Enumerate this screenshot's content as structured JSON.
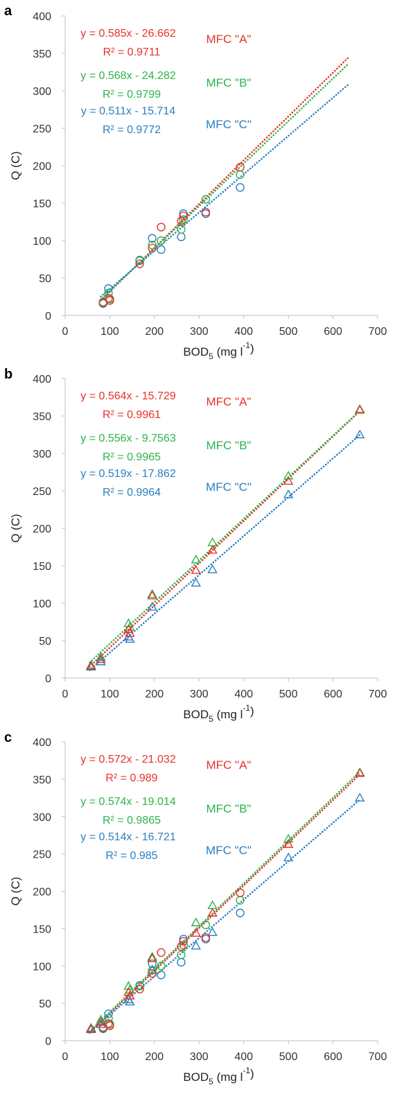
{
  "colors": {
    "A": "#e8322a",
    "B": "#2db34a",
    "C": "#2a7fc0"
  },
  "chart_data": [
    {
      "panel": "a",
      "type": "scatter",
      "marker": "circle",
      "xlabel_main": "BOD",
      "xlabel_sub": "5",
      "xlabel_tail": " (mg l",
      "xlabel_sup": "-1",
      "xlabel_close": ")",
      "ylabel": "Q (C)",
      "xlim": [
        0,
        700
      ],
      "ylim": [
        0,
        400
      ],
      "xticks": [
        0,
        100,
        200,
        300,
        400,
        500,
        600,
        700
      ],
      "yticks": [
        0,
        50,
        100,
        150,
        200,
        250,
        300,
        350,
        400
      ],
      "series": [
        {
          "key": "A",
          "name": "MFC \"A\"",
          "equation": "y = 0.585x - 26.662",
          "r2": "R² = 0.9711",
          "slope": 0.585,
          "intercept": -26.662,
          "trend_x": [
            80,
            635
          ],
          "x": [
            85,
            97,
            100,
            167,
            195,
            215,
            260,
            265,
            315,
            392
          ],
          "y": [
            17,
            23,
            20,
            69,
            90,
            118,
            126,
            133,
            138,
            198
          ]
        },
        {
          "key": "B",
          "name": "MFC \"B\"",
          "equation": "y = 0.568x - 24.282",
          "r2": "R² = 0.9799",
          "slope": 0.568,
          "intercept": -24.282,
          "trend_x": [
            80,
            635
          ],
          "x": [
            85,
            97,
            100,
            167,
            195,
            215,
            260,
            265,
            315,
            392
          ],
          "y": [
            18,
            30,
            22,
            73,
            94,
            100,
            115,
            128,
            155,
            188
          ]
        },
        {
          "key": "C",
          "name": "MFC \"C\"",
          "equation": "y = 0.511x - 15.714",
          "r2": "R² = 0.9772",
          "slope": 0.511,
          "intercept": -15.714,
          "trend_x": [
            80,
            635
          ],
          "x": [
            85,
            97,
            100,
            167,
            195,
            215,
            260,
            265,
            315,
            392
          ],
          "y": [
            16,
            36,
            22,
            74,
            103,
            88,
            105,
            136,
            136,
            171
          ]
        }
      ]
    },
    {
      "panel": "b",
      "type": "scatter",
      "marker": "triangle",
      "xlabel_main": "BOD",
      "xlabel_sub": "5",
      "xlabel_tail": " (mg l",
      "xlabel_sup": "-1",
      "xlabel_close": ")",
      "ylabel": "Q (C)",
      "xlim": [
        0,
        700
      ],
      "ylim": [
        0,
        400
      ],
      "xticks": [
        0,
        100,
        200,
        300,
        400,
        500,
        600,
        700
      ],
      "yticks": [
        0,
        50,
        100,
        150,
        200,
        250,
        300,
        350,
        400
      ],
      "series": [
        {
          "key": "A",
          "name": "MFC \"A\"",
          "equation": "y = 0.564x - 15.729",
          "r2": "R² = 0.9961",
          "slope": 0.564,
          "intercept": -15.729,
          "trend_x": [
            55,
            660
          ],
          "x": [
            58,
            80,
            142,
            145,
            195,
            293,
            330,
            500,
            660
          ],
          "y": [
            16,
            25,
            65,
            60,
            110,
            144,
            171,
            263,
            358
          ]
        },
        {
          "key": "B",
          "name": "MFC \"B\"",
          "equation": "y = 0.556x - 9.7563",
          "r2": "R² = 0.9965",
          "slope": 0.556,
          "intercept": -9.7563,
          "trend_x": [
            55,
            660
          ],
          "x": [
            58,
            80,
            142,
            145,
            195,
            293,
            330,
            500,
            660
          ],
          "y": [
            17,
            28,
            73,
            68,
            112,
            158,
            181,
            270,
            359
          ]
        },
        {
          "key": "C",
          "name": "MFC \"C\"",
          "equation": "y = 0.519x - 17.862",
          "r2": "R² = 0.9964",
          "slope": 0.519,
          "intercept": -17.862,
          "trend_x": [
            55,
            660
          ],
          "x": [
            58,
            80,
            142,
            145,
            195,
            293,
            330,
            500,
            660
          ],
          "y": [
            15,
            22,
            55,
            52,
            95,
            127,
            145,
            245,
            325
          ]
        }
      ]
    },
    {
      "panel": "c",
      "type": "scatter",
      "marker": "mixed",
      "xlabel_main": "BOD",
      "xlabel_sub": "5",
      "xlabel_tail": " (mg l",
      "xlabel_sup": "-1",
      "xlabel_close": ")",
      "ylabel": "Q (C)",
      "xlim": [
        0,
        700
      ],
      "ylim": [
        0,
        400
      ],
      "xticks": [
        0,
        100,
        200,
        300,
        400,
        500,
        600,
        700
      ],
      "yticks": [
        0,
        50,
        100,
        150,
        200,
        250,
        300,
        350,
        400
      ],
      "series": [
        {
          "key": "A",
          "name": "MFC \"A\"",
          "equation": "y = 0.572x - 21.032",
          "r2": "R² = 0.989",
          "slope": 0.572,
          "intercept": -21.032,
          "trend_x": [
            55,
            660
          ],
          "circles": {
            "x": [
              85,
              97,
              100,
              167,
              195,
              215,
              260,
              265,
              315,
              392
            ],
            "y": [
              17,
              23,
              20,
              69,
              90,
              118,
              126,
              133,
              138,
              198
            ]
          },
          "triangles": {
            "x": [
              58,
              80,
              142,
              145,
              195,
              293,
              330,
              500,
              660
            ],
            "y": [
              16,
              25,
              65,
              60,
              110,
              144,
              171,
              263,
              358
            ]
          }
        },
        {
          "key": "B",
          "name": "MFC \"B\"",
          "equation": "y = 0.574x - 19.014",
          "r2": "R² = 0.9865",
          "slope": 0.574,
          "intercept": -19.014,
          "trend_x": [
            55,
            660
          ],
          "circles": {
            "x": [
              85,
              97,
              100,
              167,
              195,
              215,
              260,
              265,
              315,
              392
            ],
            "y": [
              18,
              30,
              22,
              73,
              94,
              100,
              115,
              128,
              155,
              188
            ]
          },
          "triangles": {
            "x": [
              58,
              80,
              142,
              145,
              195,
              293,
              330,
              500,
              660
            ],
            "y": [
              17,
              28,
              73,
              68,
              112,
              158,
              181,
              270,
              359
            ]
          }
        },
        {
          "key": "C",
          "name": "MFC \"C\"",
          "equation": "y = 0.514x - 16.721",
          "r2": "R² = 0.985",
          "slope": 0.514,
          "intercept": -16.721,
          "trend_x": [
            55,
            660
          ],
          "circles": {
            "x": [
              85,
              97,
              100,
              167,
              195,
              215,
              260,
              265,
              315,
              392
            ],
            "y": [
              16,
              36,
              22,
              74,
              103,
              88,
              105,
              136,
              136,
              171
            ]
          },
          "triangles": {
            "x": [
              58,
              80,
              142,
              145,
              195,
              293,
              330,
              500,
              660
            ],
            "y": [
              15,
              22,
              55,
              52,
              95,
              127,
              145,
              245,
              325
            ]
          }
        }
      ]
    }
  ]
}
